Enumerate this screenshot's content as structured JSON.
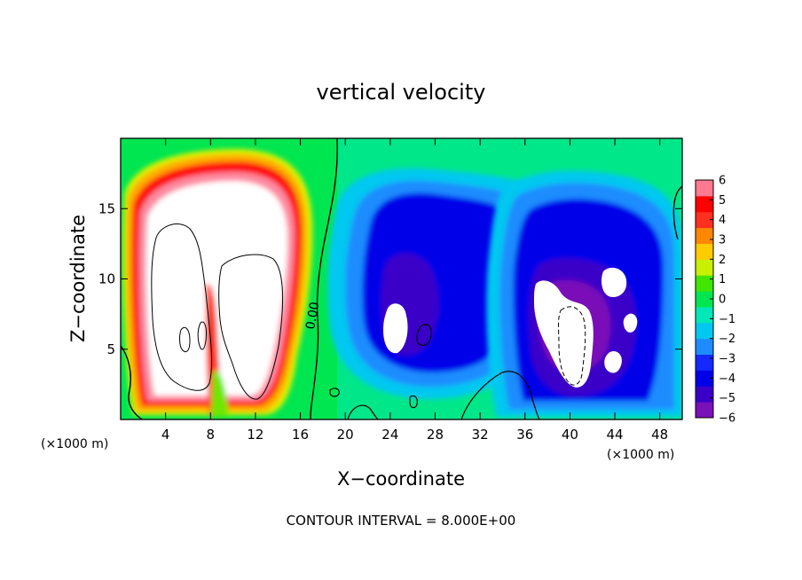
{
  "chart_data": {
    "type": "heatmap",
    "title": "vertical velocity",
    "xlabel": "X−coordinate",
    "ylabel": "Z−coordinate",
    "x_unit": "(×1000 m)",
    "z_unit": "(×1000 m)",
    "xlim": [
      0,
      50
    ],
    "ylim": [
      0,
      20
    ],
    "x_ticks": [
      4,
      8,
      12,
      16,
      20,
      24,
      28,
      32,
      36,
      40,
      44,
      48
    ],
    "y_ticks": [
      5,
      10,
      15
    ],
    "x_tick_labels": [
      "4",
      "8",
      "12",
      "16",
      "20",
      "24",
      "28",
      "32",
      "36",
      "40",
      "44",
      "48"
    ],
    "y_tick_labels": [
      "5",
      "10",
      "15"
    ],
    "colorbar": {
      "min": -6,
      "max": 6,
      "ticks": [
        6,
        5,
        4,
        3,
        2,
        1,
        0,
        -1,
        -2,
        -3,
        -4,
        -5,
        -6
      ],
      "tick_labels": [
        "6",
        "5",
        "4",
        "3",
        "2",
        "1",
        "0",
        "−1",
        "−2",
        "−3",
        "−4",
        "−5",
        "−6"
      ],
      "colors": [
        "#7a10b8",
        "#3a00c8",
        "#0000e8",
        "#1428ff",
        "#1e8cff",
        "#00c8f0",
        "#00e8b8",
        "#00e650",
        "#40e600",
        "#c8f000",
        "#ffcc00",
        "#ff8800",
        "#ff3020",
        "#ff0000",
        "#ff7a90"
      ]
    },
    "features": [
      {
        "kind": "updraft",
        "cx": 8,
        "cz": 10,
        "rx": 7,
        "rz": 8.5
      },
      {
        "kind": "downdraft",
        "cx": 26,
        "cz": 9,
        "rx": 6,
        "rz": 7
      },
      {
        "kind": "downdraft",
        "cx": 42,
        "cz": 8,
        "rx": 8,
        "rz": 7
      }
    ],
    "contour_labels": [
      "0.00"
    ],
    "annotation": "CONTOUR INTERVAL = 8.000E+00"
  }
}
